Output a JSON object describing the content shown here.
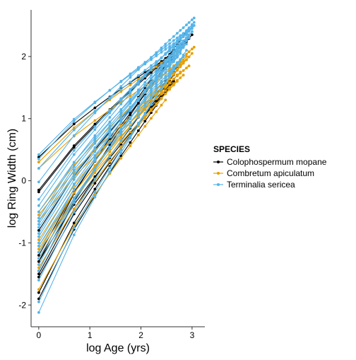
{
  "chart_data": {
    "type": "line",
    "title": "",
    "xlabel": "log Age (yrs)",
    "ylabel": "log Ring Width (cm)",
    "xlim": [
      -0.15,
      3.25
    ],
    "ylim": [
      -2.35,
      2.75
    ],
    "x_ticks": [
      0,
      1,
      2,
      3
    ],
    "y_ticks": [
      -2,
      -1,
      0,
      1,
      2
    ],
    "grid": false,
    "legend": {
      "title": "SPECIES",
      "placement": "right",
      "entries": [
        {
          "name": "Colophospermum mopane",
          "color": "#000000"
        },
        {
          "name": "Combretum apiculatum",
          "color": "#E69F00"
        },
        {
          "name": "Terminalia sericea",
          "color": "#56B4E9"
        }
      ]
    },
    "x": [
      0,
      0.69,
      1.1,
      1.39,
      1.61,
      1.79,
      1.95,
      2.08,
      2.2,
      2.3,
      2.4,
      2.48,
      2.56,
      2.64,
      2.71,
      2.77,
      2.83,
      2.89,
      2.94,
      3.0,
      3.04
    ],
    "series": [
      {
        "name": "Colophospermum mopane",
        "color": "#000000",
        "lines": [
          {
            "y0": 0.38,
            "y_end": 2.05,
            "n": 14
          },
          {
            "y0": -0.15,
            "y_end": 2.3,
            "n": 19
          },
          {
            "y0": -0.18,
            "y_end": 2.2,
            "n": 17
          },
          {
            "y0": -0.8,
            "y_end": 2.0,
            "n": 15
          },
          {
            "y0": -1.2,
            "y_end": 2.35,
            "n": 20
          },
          {
            "y0": -1.3,
            "y_end": 2.45,
            "n": 19
          },
          {
            "y0": -1.45,
            "y_end": 2.25,
            "n": 17
          },
          {
            "y0": -1.5,
            "y_end": 1.9,
            "n": 16
          },
          {
            "y0": -1.55,
            "y_end": 1.7,
            "n": 15
          },
          {
            "y0": -1.8,
            "y_end": 1.85,
            "n": 16
          },
          {
            "y0": -1.9,
            "y_end": 1.6,
            "n": 14
          },
          {
            "y0": -1.3,
            "y_end": 1.5,
            "n": 13
          }
        ]
      },
      {
        "name": "Combretum apiculatum",
        "color": "#E69F00",
        "lines": [
          {
            "y0": 0.3,
            "y_end": 2.1,
            "n": 16
          },
          {
            "y0": 0.2,
            "y_end": 1.95,
            "n": 18
          },
          {
            "y0": -0.5,
            "y_end": 2.15,
            "n": 21
          },
          {
            "y0": -0.55,
            "y_end": 1.85,
            "n": 19
          },
          {
            "y0": -0.65,
            "y_end": 1.7,
            "n": 17
          },
          {
            "y0": -0.95,
            "y_end": 2.0,
            "n": 18
          },
          {
            "y0": -1.05,
            "y_end": 1.75,
            "n": 16
          },
          {
            "y0": -1.1,
            "y_end": 1.9,
            "n": 17
          },
          {
            "y0": -1.15,
            "y_end": 1.6,
            "n": 15
          },
          {
            "y0": -1.25,
            "y_end": 2.05,
            "n": 20
          },
          {
            "y0": -1.4,
            "y_end": 1.55,
            "n": 14
          },
          {
            "y0": -1.75,
            "y_end": 1.3,
            "n": 12
          }
        ]
      },
      {
        "name": "Terminalia sericea",
        "color": "#56B4E9",
        "lines": [
          {
            "y0": 0.42,
            "y_end": 2.35,
            "n": 18
          },
          {
            "y0": 0.35,
            "y_end": 2.5,
            "n": 21
          },
          {
            "y0": 0.2,
            "y_end": 2.25,
            "n": 17
          },
          {
            "y0": -0.02,
            "y_end": 2.62,
            "n": 21
          },
          {
            "y0": -0.3,
            "y_end": 2.45,
            "n": 20
          },
          {
            "y0": -0.5,
            "y_end": 2.1,
            "n": 16
          },
          {
            "y0": -0.6,
            "y_end": 2.55,
            "n": 21
          },
          {
            "y0": -0.7,
            "y_end": 2.3,
            "n": 19
          },
          {
            "y0": -0.75,
            "y_end": 2.0,
            "n": 15
          },
          {
            "y0": -0.85,
            "y_end": 2.4,
            "n": 20
          },
          {
            "y0": -0.9,
            "y_end": 2.15,
            "n": 17
          },
          {
            "y0": -1.0,
            "y_end": 2.2,
            "n": 18
          },
          {
            "y0": -1.05,
            "y_end": 1.95,
            "n": 16
          },
          {
            "y0": -1.15,
            "y_end": 2.35,
            "n": 19
          },
          {
            "y0": -1.25,
            "y_end": 1.8,
            "n": 14
          },
          {
            "y0": -1.35,
            "y_end": 2.05,
            "n": 16
          },
          {
            "y0": -1.45,
            "y_end": 2.25,
            "n": 18
          },
          {
            "y0": -1.6,
            "y_end": 1.9,
            "n": 15
          },
          {
            "y0": -1.95,
            "y_end": 2.0,
            "n": 17
          },
          {
            "y0": -2.12,
            "y_end": 2.1,
            "n": 18
          },
          {
            "y0": -0.4,
            "y_end": 2.5,
            "n": 21
          },
          {
            "y0": -0.65,
            "y_end": 2.4,
            "n": 20
          }
        ]
      }
    ]
  }
}
